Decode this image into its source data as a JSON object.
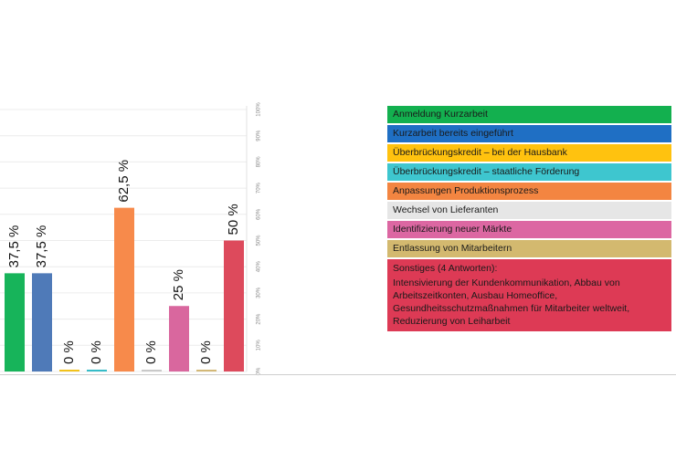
{
  "chart_data": {
    "type": "bar",
    "categories": [
      "Anmeldung Kurzarbeit",
      "Kurzarbeit bereits eingeführt",
      "Überbrückungskredit – bei der Hausbank",
      "Überbrückungskredit – staatliche Förderung",
      "Anpassungen Produktionsprozess",
      "Wechsel von Lieferanten",
      "Identifizierung neuer Märkte",
      "Entlassung von Mitarbeitern",
      "Sonstiges (4 Antworten):"
    ],
    "values": [
      37.5,
      37.5,
      0,
      0,
      62.5,
      0,
      25,
      0,
      50
    ],
    "value_labels": [
      "37,5 %",
      "37,5 %",
      "0 %",
      "0 %",
      "62,5 %",
      "0 %",
      "25 %",
      "0 %",
      "50 %"
    ],
    "colors": [
      "#17b45a",
      "#4f7ab8",
      "#f2c21b",
      "#36bcc8",
      "#f78a4b",
      "#c9c9c9",
      "#d9679e",
      "#d3b877",
      "#dd4a5c"
    ],
    "ylim": [
      0,
      100
    ],
    "ytick_labels": [
      "0%",
      "10%",
      "20%",
      "30%",
      "40%",
      "50%",
      "60%",
      "70%",
      "80%",
      "90%",
      "100%"
    ],
    "grid": true
  },
  "legend": {
    "items": [
      {
        "label": "Anmeldung Kurzarbeit",
        "color": "#13b04f"
      },
      {
        "label": "Kurzarbeit bereits eingeführt",
        "color": "#1f6fc4"
      },
      {
        "label": "Überbrückungskredit – bei der Hausbank",
        "color": "#ffc20f"
      },
      {
        "label": "Überbrückungskredit – staatliche Förderung",
        "color": "#3ec6cf"
      },
      {
        "label": "Anpassungen Produktionsprozess",
        "color": "#f38541"
      },
      {
        "label": "Wechsel von Lieferanten",
        "color": "#e6e6e6"
      },
      {
        "label": "Identifizierung neuer Märkte",
        "color": "#dc67a2"
      },
      {
        "label": "Entlassung von Mitarbeitern",
        "color": "#d3b96f"
      }
    ],
    "other": {
      "label": "Sonstiges (4 Antworten):",
      "detail": "Intensivierung der Kundenkommunikation, Abbau von Arbeitszeitkonten, Ausbau Homeoffice, Gesundheitsschutzmaßnahmen für Mitarbeiter weltweit, Reduzierung von Leiharbeit",
      "color": "#dd3a55"
    }
  }
}
